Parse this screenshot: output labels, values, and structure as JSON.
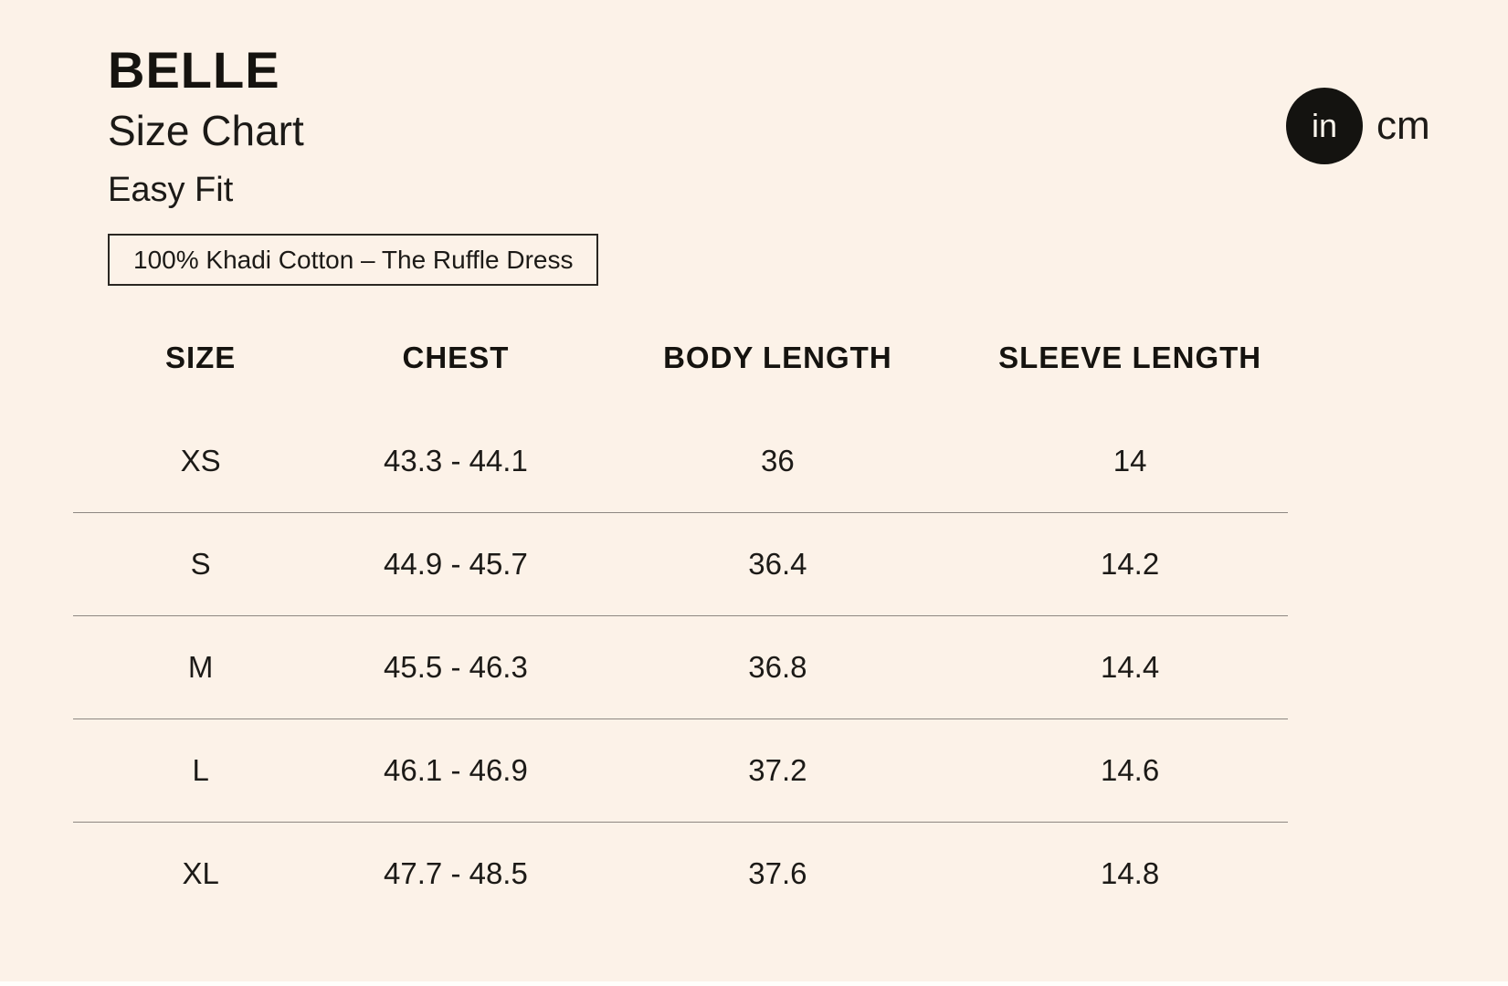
{
  "page": {
    "title": "BELLE",
    "subtitle": "Size Chart",
    "fit_label": "Easy Fit",
    "material_note": "100% Khadi Cotton – The Ruffle Dress",
    "background_color": "#FCF2E8",
    "text_color": "#1C1A17",
    "divider_color": "#8D8781"
  },
  "unit_toggle": {
    "selected": "in",
    "options": [
      {
        "label": "in",
        "selected": true
      },
      {
        "label": "cm",
        "selected": false
      }
    ],
    "selected_bg_color": "#141310",
    "selected_text_color": "#FDF6ED"
  },
  "size_table": {
    "columns": [
      "SIZE",
      "CHEST",
      "BODY LENGTH",
      "SLEEVE LENGTH"
    ],
    "rows": [
      {
        "size": "XS",
        "chest": "43.3 - 44.1",
        "body_length": "36",
        "sleeve_length": "14"
      },
      {
        "size": "S",
        "chest": "44.9 - 45.7",
        "body_length": "36.4",
        "sleeve_length": "14.2"
      },
      {
        "size": "M",
        "chest": "45.5 - 46.3",
        "body_length": "36.8",
        "sleeve_length": "14.4"
      },
      {
        "size": "L",
        "chest": "46.1 - 46.9",
        "body_length": "37.2",
        "sleeve_length": "14.6"
      },
      {
        "size": "XL",
        "chest": "47.7 - 48.5",
        "body_length": "37.6",
        "sleeve_length": "14.8"
      }
    ]
  }
}
